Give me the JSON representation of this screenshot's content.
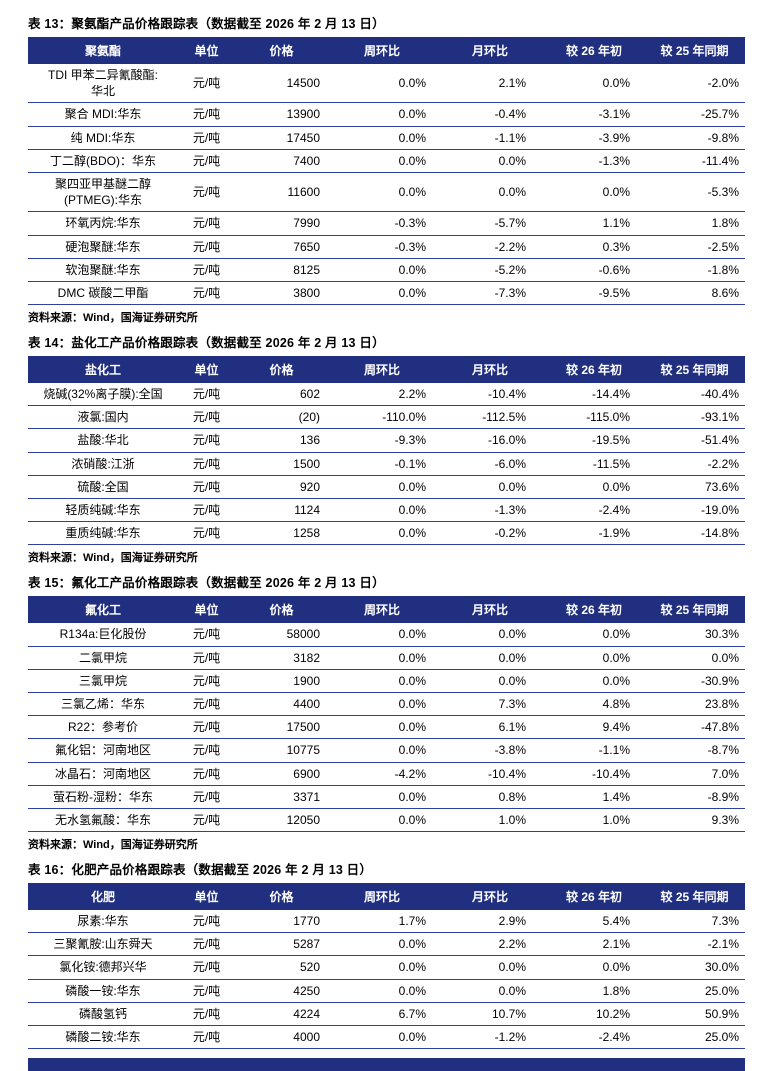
{
  "colors": {
    "header_bg": "#202f80",
    "row_border": "#2e3f9f",
    "negative_red": "#e01515"
  },
  "source_label": "资料来源：Wind，国海证券研究所",
  "tables": [
    {
      "title": "表 13：聚氨酯产品价格跟踪表（数据截至 2026 年 2 月 13 日）",
      "columns": [
        "聚氨酯",
        "单位",
        "价格",
        "周环比",
        "月环比",
        "较 26 年初",
        "较 25 年同期"
      ],
      "rows": [
        [
          "TDI 甲苯二异氰酸酯:\n华北",
          "元/吨",
          "14500",
          "0.0%",
          "2.1%",
          "0.0%",
          "-2.0%"
        ],
        [
          "聚合 MDI:华东",
          "元/吨",
          "13900",
          "0.0%",
          "-0.4%",
          "-3.1%",
          "-25.7%"
        ],
        [
          "纯 MDI:华东",
          "元/吨",
          "17450",
          "0.0%",
          "-1.1%",
          "-3.9%",
          "-9.8%"
        ],
        [
          "丁二醇(BDO)：华东",
          "元/吨",
          "7400",
          "0.0%",
          "0.0%",
          "-1.3%",
          "-11.4%"
        ],
        [
          "聚四亚甲基醚二醇\n(PTMEG):华东",
          "元/吨",
          "11600",
          "0.0%",
          "0.0%",
          "0.0%",
          "-5.3%"
        ],
        [
          "环氧丙烷:华东",
          "元/吨",
          "7990",
          "-0.3%",
          "-5.7%",
          "1.1%",
          "1.8%"
        ],
        [
          "硬泡聚醚:华东",
          "元/吨",
          "7650",
          "-0.3%",
          "-2.2%",
          "0.3%",
          "-2.5%"
        ],
        [
          "软泡聚醚:华东",
          "元/吨",
          "8125",
          "0.0%",
          "-5.2%",
          "-0.6%",
          "-1.8%"
        ],
        [
          "DMC 碳酸二甲酯",
          "元/吨",
          "3800",
          "0.0%",
          "-7.3%",
          "-9.5%",
          "8.6%"
        ]
      ],
      "source": "资料来源：Wind，国海证券研究所"
    },
    {
      "title": "表 14：盐化工产品价格跟踪表（数据截至 2026 年 2 月 13 日）",
      "columns": [
        "盐化工",
        "单位",
        "价格",
        "周环比",
        "月环比",
        "较 26 年初",
        "较 25 年同期"
      ],
      "rows": [
        [
          "烧碱(32%离子膜):全国",
          "元/吨",
          "602",
          "2.2%",
          "-10.4%",
          "-14.4%",
          "-40.4%"
        ],
        [
          "液氯:国内",
          "元/吨",
          {
            "t": "(20)",
            "red": true
          },
          "-110.0%",
          "-112.5%",
          "-115.0%",
          "-93.1%"
        ],
        [
          "盐酸:华北",
          "元/吨",
          "136",
          "-9.3%",
          "-16.0%",
          "-19.5%",
          "-51.4%"
        ],
        [
          "浓硝酸:江浙",
          "元/吨",
          "1500",
          "-0.1%",
          "-6.0%",
          "-11.5%",
          "-2.2%"
        ],
        [
          "硫酸:全国",
          "元/吨",
          "920",
          "0.0%",
          "0.0%",
          "0.0%",
          "73.6%"
        ],
        [
          "轻质纯碱:华东",
          "元/吨",
          "1124",
          "0.0%",
          "-1.3%",
          "-2.4%",
          "-19.0%"
        ],
        [
          "重质纯碱:华东",
          "元/吨",
          "1258",
          "0.0%",
          "-0.2%",
          "-1.9%",
          "-14.8%"
        ]
      ],
      "source": "资料来源：Wind，国海证券研究所"
    },
    {
      "title": "表 15：氟化工产品价格跟踪表（数据截至 2026 年 2 月 13 日）",
      "columns": [
        "氟化工",
        "单位",
        "价格",
        "周环比",
        "月环比",
        "较 26 年初",
        "较 25 年同期"
      ],
      "rows": [
        [
          "R134a:巨化股份",
          "元/吨",
          "58000",
          "0.0%",
          "0.0%",
          "0.0%",
          "30.3%"
        ],
        [
          "二氯甲烷",
          "元/吨",
          "3182",
          "0.0%",
          "0.0%",
          "0.0%",
          "0.0%"
        ],
        [
          "三氯甲烷",
          "元/吨",
          "1900",
          "0.0%",
          "0.0%",
          "0.0%",
          "-30.9%"
        ],
        [
          "三氯乙烯：华东",
          "元/吨",
          "4400",
          "0.0%",
          "7.3%",
          "4.8%",
          "23.8%"
        ],
        [
          "R22：参考价",
          "元/吨",
          "17500",
          "0.0%",
          "6.1%",
          "9.4%",
          "-47.8%"
        ],
        [
          "氟化铝：河南地区",
          "元/吨",
          "10775",
          "0.0%",
          "-3.8%",
          "-1.1%",
          "-8.7%"
        ],
        [
          "冰晶石：河南地区",
          "元/吨",
          "6900",
          "-4.2%",
          "-10.4%",
          "-10.4%",
          "7.0%"
        ],
        [
          "萤石粉-湿粉：华东",
          "元/吨",
          "3371",
          "0.0%",
          "0.8%",
          "1.4%",
          "-8.9%"
        ],
        [
          "无水氢氟酸：华东",
          "元/吨",
          "12050",
          "0.0%",
          "1.0%",
          "1.0%",
          "9.3%"
        ]
      ],
      "source": "资料来源：Wind，国海证券研究所"
    },
    {
      "title": "表 16：化肥产品价格跟踪表（数据截至 2026 年 2 月 13 日）",
      "columns": [
        "化肥",
        "单位",
        "价格",
        "周环比",
        "月环比",
        "较 26 年初",
        "较 25 年同期"
      ],
      "rows": [
        [
          "尿素:华东",
          "元/吨",
          "1770",
          "1.7%",
          "2.9%",
          "5.4%",
          "7.3%"
        ],
        [
          "三聚氰胺:山东舜天",
          "元/吨",
          "5287",
          "0.0%",
          "2.2%",
          "2.1%",
          "-2.1%"
        ],
        [
          "氯化铵:德邦兴华",
          "元/吨",
          "520",
          "0.0%",
          "0.0%",
          "0.0%",
          "30.0%"
        ],
        [
          "磷酸一铵:华东",
          "元/吨",
          "4250",
          "0.0%",
          "0.0%",
          "1.8%",
          "25.0%"
        ],
        [
          "磷酸氢钙",
          "元/吨",
          "4224",
          "6.7%",
          "10.7%",
          "10.2%",
          "50.9%"
        ],
        [
          "磷酸二铵:华东",
          "元/吨",
          "4000",
          "0.0%",
          "-1.2%",
          "-2.4%",
          "25.0%"
        ]
      ],
      "source": ""
    }
  ]
}
